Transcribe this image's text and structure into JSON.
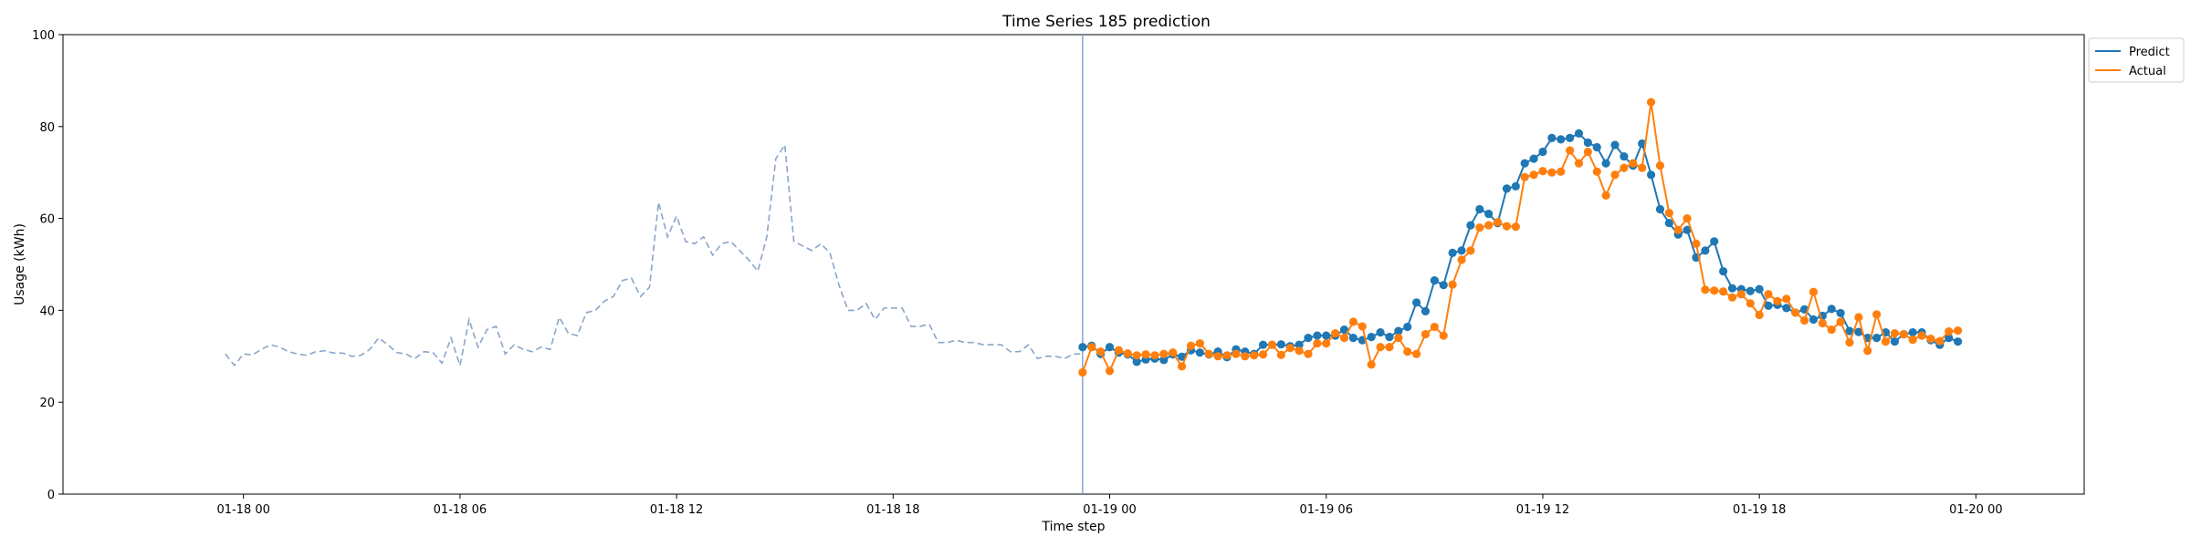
{
  "chart_data": {
    "type": "line",
    "title": "Time Series 185 prediction",
    "xlabel": "Time step",
    "ylabel": "Usage (kWh)",
    "ylim": [
      0,
      100
    ],
    "xlim": [
      "2024-01-17 19:00",
      "2024-01-20 03:00"
    ],
    "x_ticks": [
      "2024-01-18 00:00",
      "2024-01-18 06:00",
      "2024-01-18 12:00",
      "2024-01-18 18:00",
      "2024-01-19 00:00",
      "2024-01-19 06:00",
      "2024-01-19 12:00",
      "2024-01-19 18:00",
      "2024-01-20 00:00"
    ],
    "x_tick_labels": [
      "01-18 00",
      "01-18 06",
      "01-18 12",
      "01-18 18",
      "01-19 00",
      "01-19 06",
      "01-19 12",
      "01-19 18",
      "01-20 00"
    ],
    "y_ticks": [
      0,
      20,
      40,
      60,
      80,
      100
    ],
    "y_tick_labels": [
      "0",
      "20",
      "40",
      "60",
      "80",
      "100"
    ],
    "grid": false,
    "legend_position": "outside-top-right",
    "split_time": "2024-01-18 23:15",
    "history": {
      "style": "dashed",
      "color": "#8aa5c9",
      "start": "2024-01-17 23:30",
      "interval_minutes": 15,
      "values": [
        30.5,
        28,
        30.5,
        30.3,
        31.5,
        32.5,
        32,
        31,
        30.5,
        30.2,
        31,
        31.2,
        30.7,
        30.7,
        30,
        30.2,
        31.5,
        34,
        32.5,
        30.8,
        30.5,
        29.5,
        31,
        30.8,
        28.5,
        34,
        28,
        38,
        32,
        35.8,
        36.5,
        30.5,
        32.5,
        31.5,
        31,
        32,
        31.5,
        38.5,
        35,
        34.5,
        39.5,
        40,
        42,
        43,
        46.5,
        47,
        43,
        45,
        63.5,
        56,
        60.5,
        55,
        54.5,
        56,
        52,
        54.5,
        55,
        53,
        51,
        48.5,
        56,
        73,
        76,
        55,
        54,
        53,
        54.5,
        52.5,
        45.5,
        40,
        40,
        41.5,
        38,
        40.5,
        40.5,
        40.5,
        36.5,
        36.5,
        37,
        33,
        33,
        33.5,
        33,
        33,
        32.5,
        32.5,
        32.5,
        31,
        31,
        32.5,
        29.5,
        30,
        30,
        29.5,
        30.5,
        30.5
      ]
    },
    "series": [
      {
        "name": "Predict",
        "color": "#1f77b4",
        "start": "2024-01-18 23:15",
        "interval_minutes": 15,
        "values": [
          32,
          32.3,
          30.5,
          32,
          30.8,
          30.4,
          28.8,
          29.3,
          29.5,
          29.2,
          30.4,
          29.9,
          31.3,
          30.8,
          30.4,
          31,
          29.8,
          31.5,
          31,
          30.5,
          32.5,
          32.5,
          32.6,
          32.2,
          32.5,
          34,
          34.5,
          34.5,
          34.5,
          35.8,
          34,
          33.5,
          34.2,
          35.2,
          34.2,
          35.5,
          36.4,
          41.7,
          39.8,
          46.5,
          45.5,
          52.5,
          53,
          58.5,
          62,
          61,
          59,
          66.5,
          67,
          72,
          73,
          74.5,
          77.5,
          77.2,
          77.5,
          78.5,
          76.5,
          75.5,
          72,
          76,
          73.5,
          71.5,
          76.3,
          69.5,
          62,
          59,
          56.5,
          57.5,
          51.5,
          53,
          55,
          48.5,
          44.8,
          44.6,
          44.2,
          44.6,
          41,
          41.2,
          40.5,
          39.5,
          40.2,
          38,
          38.8,
          40.3,
          39.4,
          35.5,
          35.3,
          34,
          34,
          35.2,
          33.2,
          34.8,
          35.2,
          35.2,
          33.5,
          32.5,
          34,
          33.2
        ]
      },
      {
        "name": "Actual",
        "color": "#ff7f0e",
        "start": "2024-01-18 23:15",
        "interval_minutes": 15,
        "values": [
          26.5,
          32,
          31,
          26.8,
          31.3,
          30.6,
          30.2,
          30.4,
          30.2,
          30.5,
          30.8,
          27.8,
          32.3,
          32.8,
          30.5,
          30,
          30.2,
          30.5,
          30,
          30.2,
          30.4,
          32.5,
          30.3,
          31.8,
          31.2,
          30.5,
          32.8,
          32.8,
          35,
          34,
          37.5,
          36.5,
          28.2,
          32,
          32,
          34,
          31,
          30.5,
          34.8,
          36.4,
          34.5,
          45.6,
          51,
          53,
          58,
          58.5,
          59.2,
          58.3,
          58.2,
          69,
          69.5,
          70.3,
          70,
          70.2,
          74.8,
          72,
          74.5,
          70.2,
          65,
          69.5,
          71,
          72,
          71,
          85.3,
          71.5,
          61.2,
          57.5,
          60,
          54.5,
          44.5,
          44.3,
          44.1,
          42.8,
          43.5,
          41.5,
          39,
          43.5,
          42,
          42.5,
          39.5,
          37.8,
          44,
          37.2,
          35.8,
          37.5,
          33,
          38.5,
          31.2,
          39.1,
          33.2,
          35,
          34.8,
          33.6,
          34.5,
          33.8,
          33.3,
          35.4,
          35.6
        ]
      }
    ]
  }
}
